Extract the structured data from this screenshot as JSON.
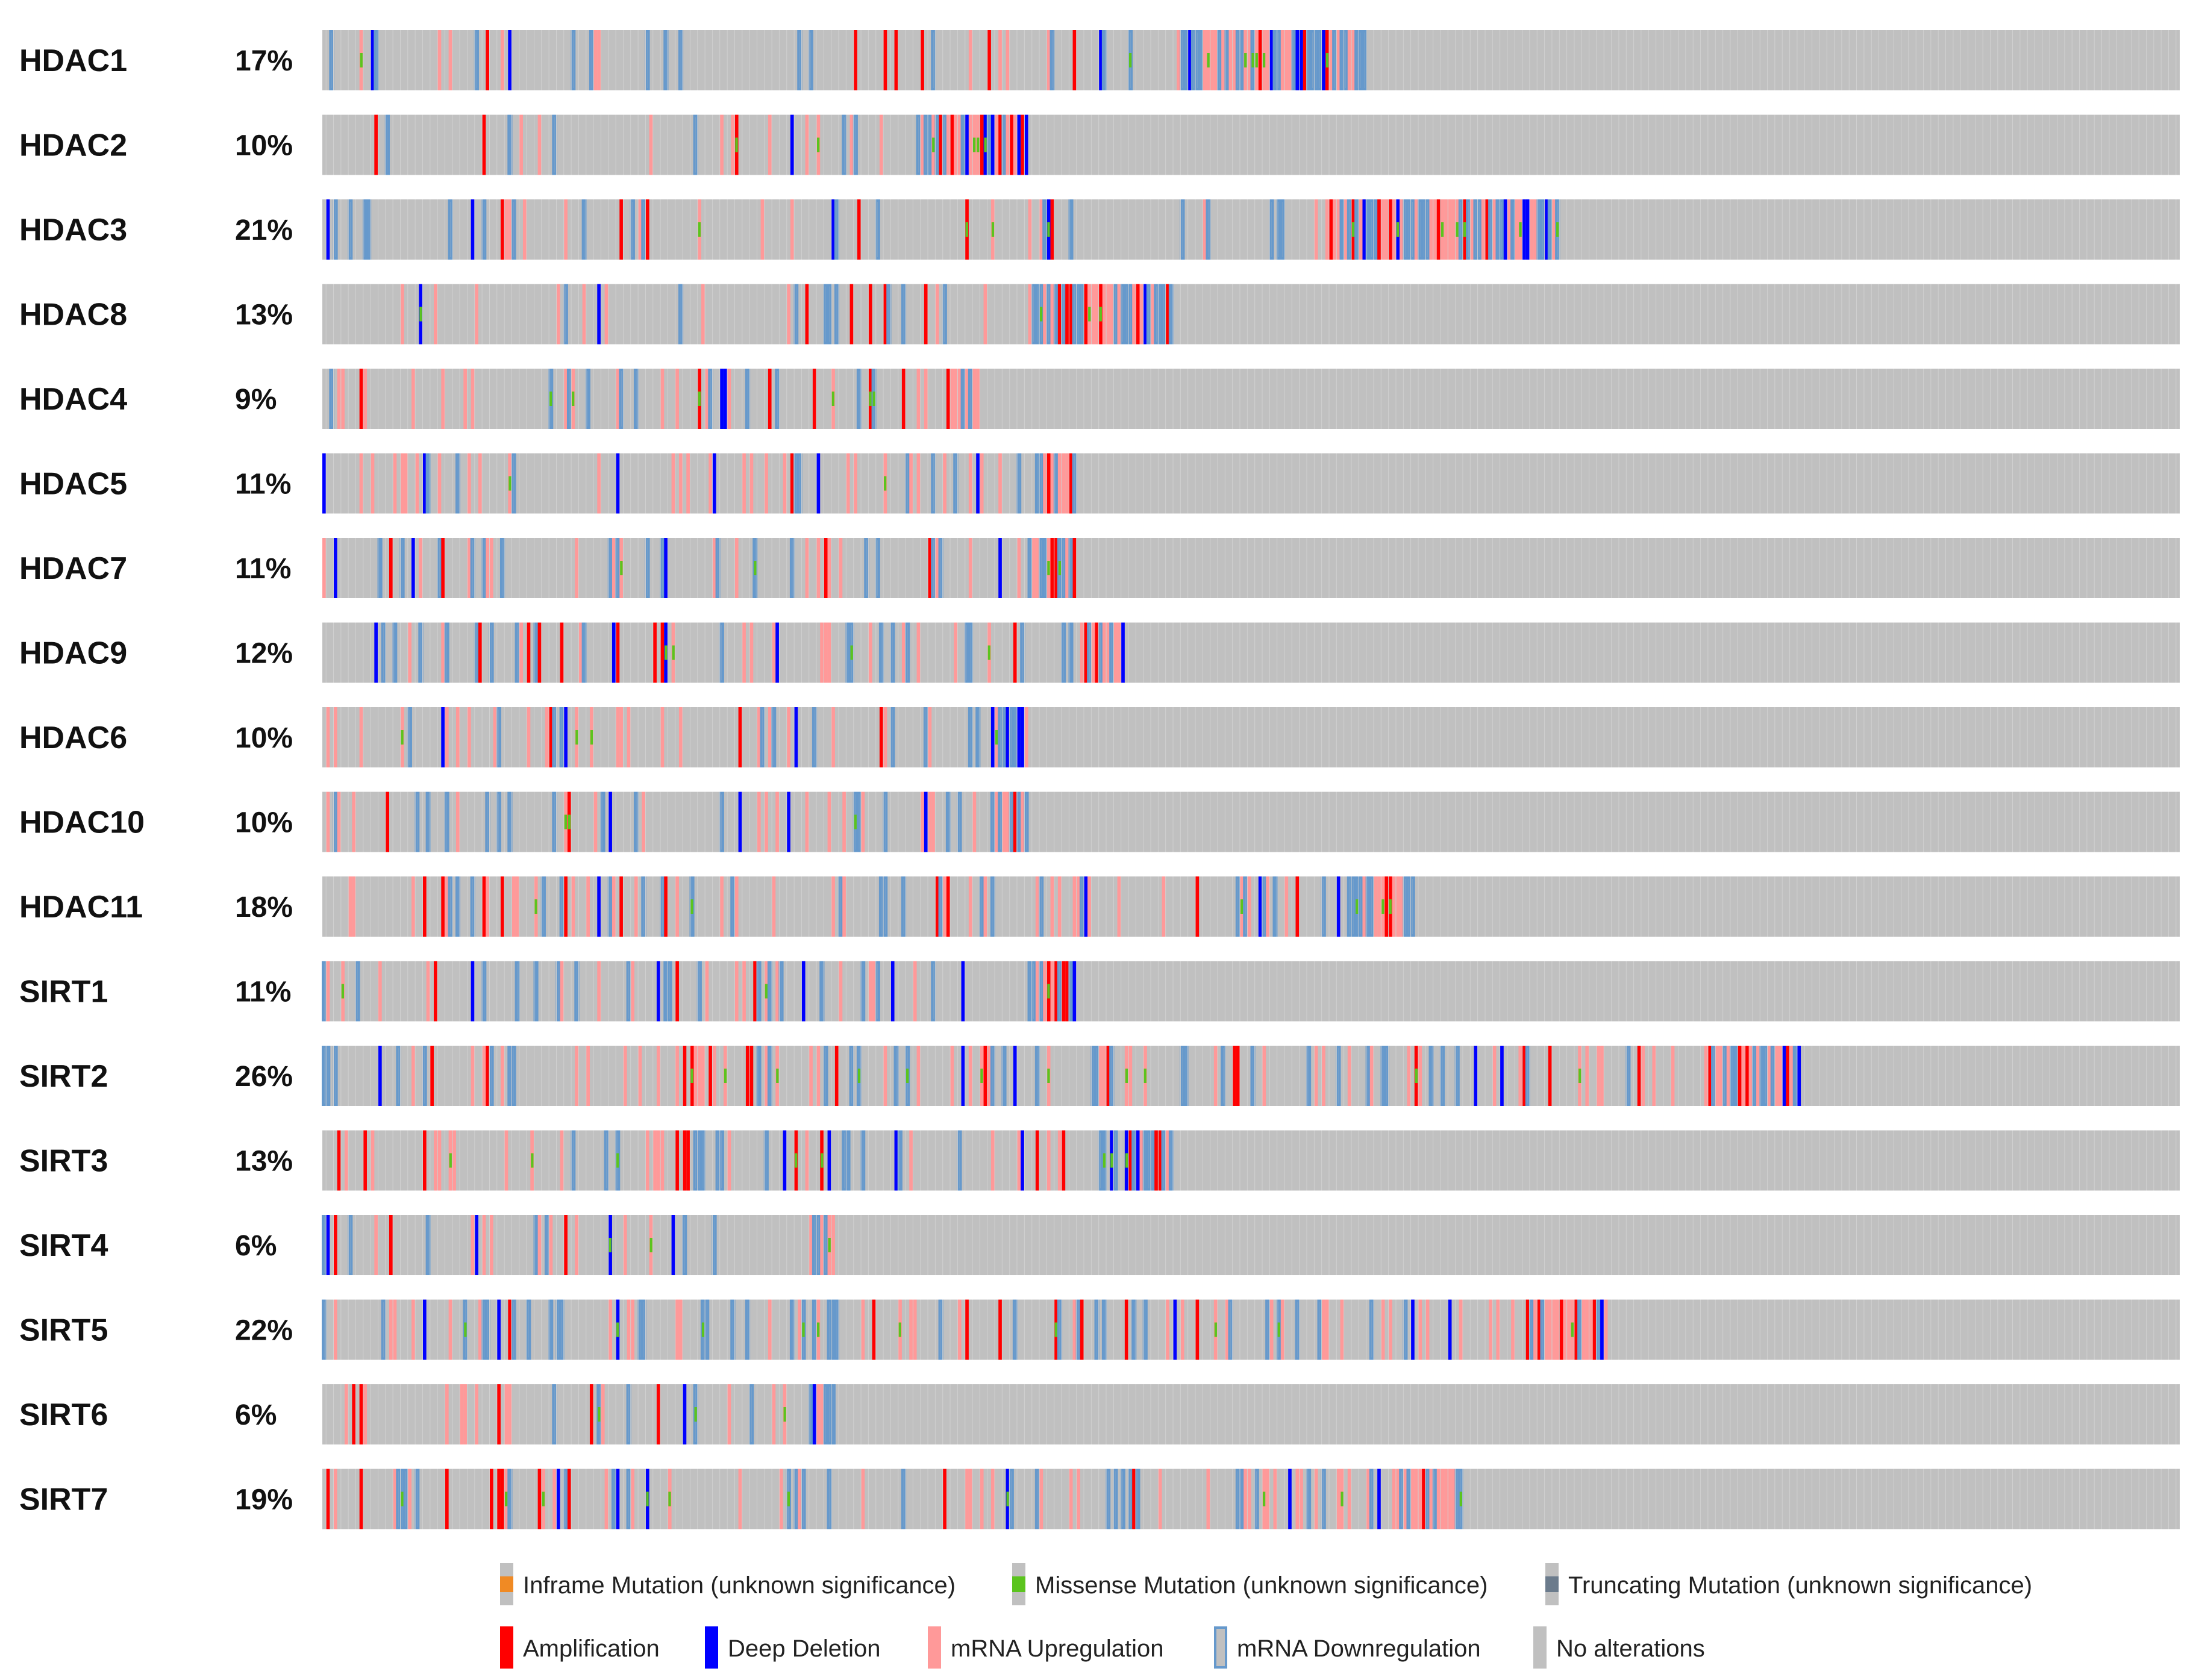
{
  "chart_data": {
    "type": "oncoprint",
    "title": "",
    "n_samples": 500,
    "genes": [
      {
        "name": "HDAC1",
        "percent": "17%"
      },
      {
        "name": "HDAC2",
        "percent": "10%"
      },
      {
        "name": "HDAC3",
        "percent": "21%"
      },
      {
        "name": "HDAC8",
        "percent": "13%"
      },
      {
        "name": "HDAC4",
        "percent": "9%"
      },
      {
        "name": "HDAC5",
        "percent": "11%"
      },
      {
        "name": "HDAC7",
        "percent": "11%"
      },
      {
        "name": "HDAC9",
        "percent": "12%"
      },
      {
        "name": "HDAC6",
        "percent": "10%"
      },
      {
        "name": "HDAC10",
        "percent": "10%"
      },
      {
        "name": "HDAC11",
        "percent": "18%"
      },
      {
        "name": "SIRT1",
        "percent": "11%"
      },
      {
        "name": "SIRT2",
        "percent": "26%"
      },
      {
        "name": "SIRT3",
        "percent": "13%"
      },
      {
        "name": "SIRT4",
        "percent": "6%"
      },
      {
        "name": "SIRT5",
        "percent": "22%"
      },
      {
        "name": "SIRT6",
        "percent": "6%"
      },
      {
        "name": "SIRT7",
        "percent": "19%"
      }
    ],
    "legend": [
      {
        "label": "Inframe Mutation (unknown significance)",
        "color": "#F08A24",
        "kind": "mutation"
      },
      {
        "label": "Missense Mutation (unknown significance)",
        "color": "#5BC41E",
        "kind": "mutation"
      },
      {
        "label": "Truncating Mutation (unknown significance)",
        "color": "#6B7B8C",
        "kind": "mutation"
      },
      {
        "label": "Amplification",
        "color": "#FF0000",
        "kind": "cna"
      },
      {
        "label": "Deep Deletion",
        "color": "#0000FF",
        "kind": "cna"
      },
      {
        "label": "mRNA Upregulation",
        "color": "#FF9999",
        "kind": "mrna-up"
      },
      {
        "label": "mRNA Downregulation",
        "color": "#6699CC",
        "kind": "mrna-down"
      },
      {
        "label": "No alterations",
        "color": "#C0C0C0",
        "kind": "none"
      }
    ]
  },
  "colors": {
    "background": "#C0C0C0",
    "amplification": "#FF0000",
    "deep_deletion": "#0000FF",
    "mrna_up": "#FF9999",
    "mrna_down": "#6699CC",
    "missense": "#5BC41E",
    "inframe": "#F08A24",
    "truncating": "#6B7B8C"
  }
}
